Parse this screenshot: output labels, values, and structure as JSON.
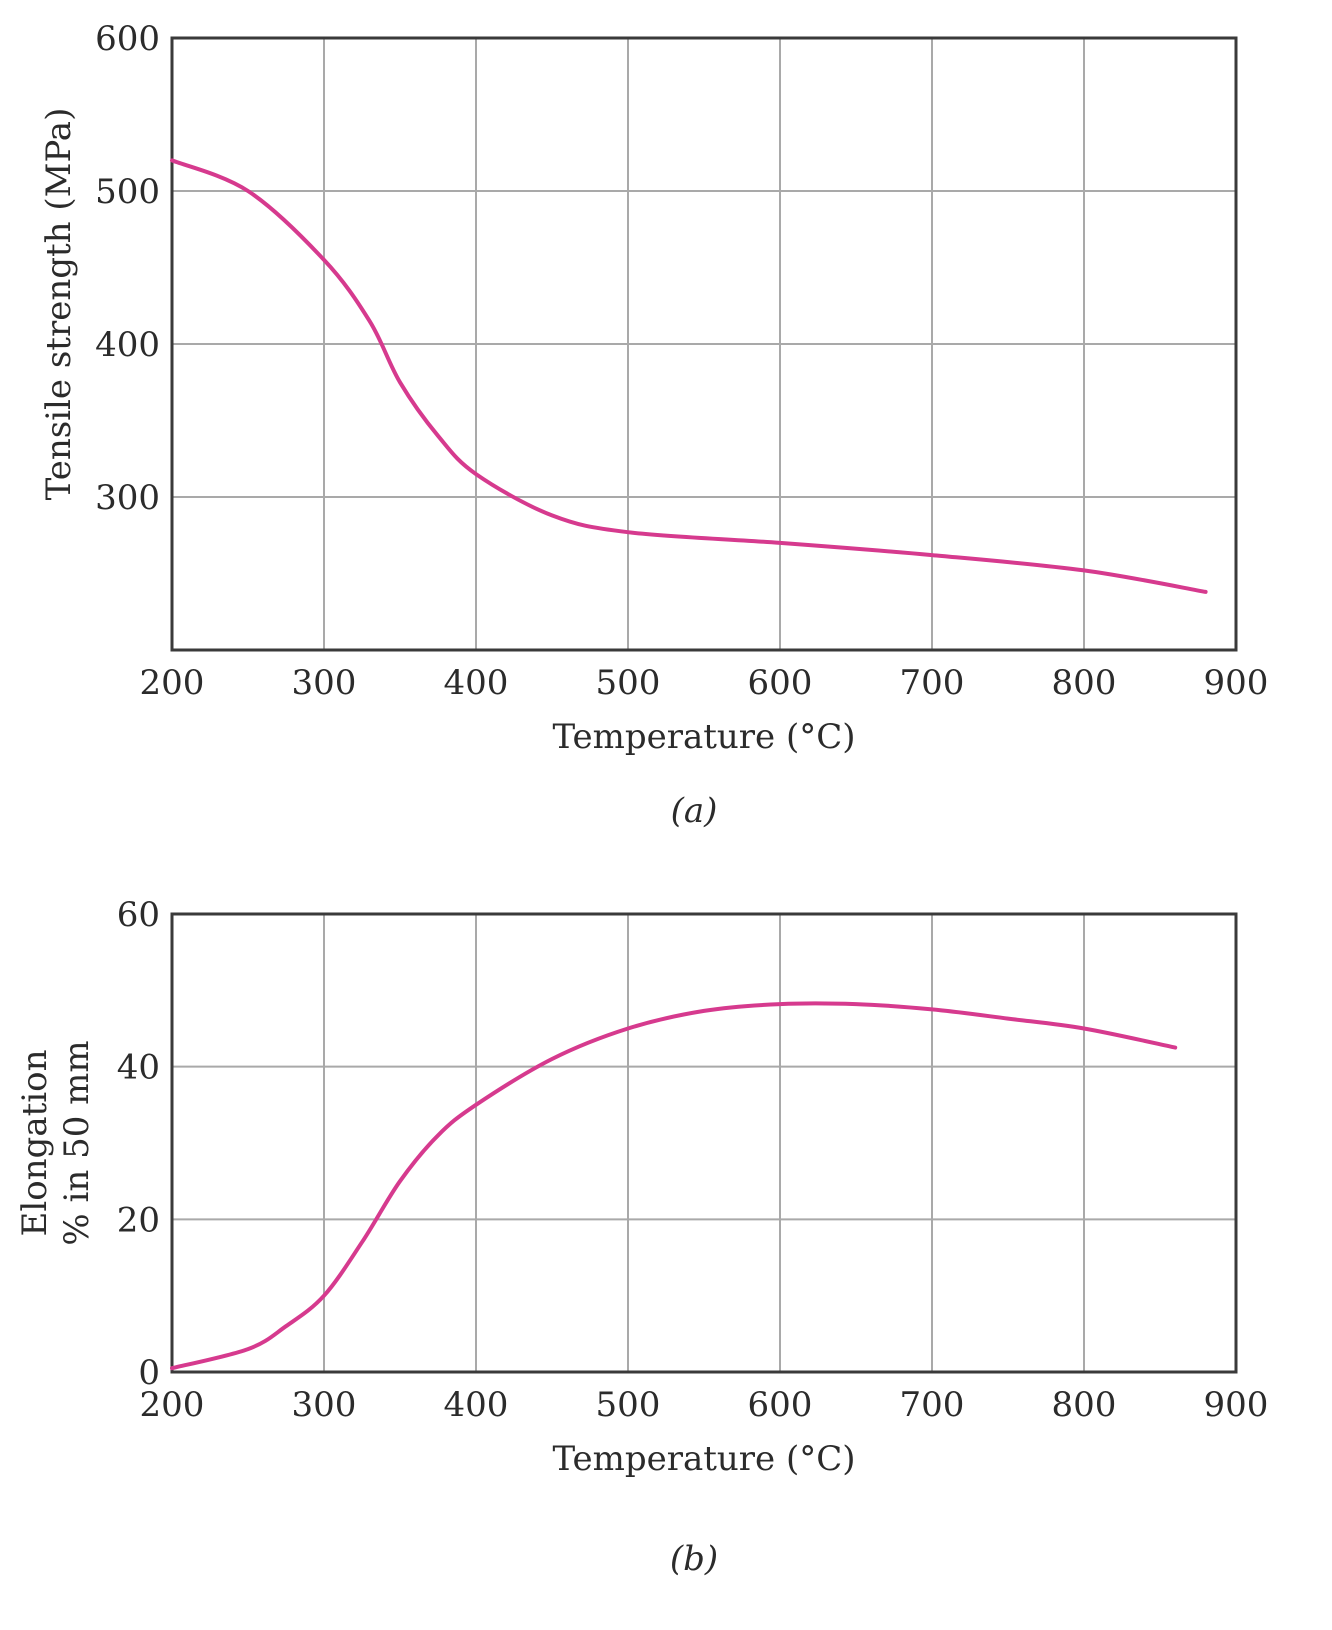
{
  "chart_data": [
    {
      "type": "line",
      "panel_label": "(a)",
      "xlabel": "Temperature (°C)",
      "ylabel": "Tensile strength (MPa)",
      "xlim": [
        200,
        900
      ],
      "ylim": [
        200,
        600
      ],
      "xticks": [
        200,
        300,
        400,
        500,
        600,
        700,
        800,
        900
      ],
      "yticks": [
        300,
        400,
        500,
        600
      ],
      "grid": true,
      "colors": {
        "line": "#d63a8e"
      },
      "series": [
        {
          "x": [
            200,
            250,
            300,
            330,
            350,
            375,
            400,
            450,
            500,
            600,
            700,
            800,
            880
          ],
          "y": [
            520,
            500,
            455,
            415,
            375,
            340,
            315,
            288,
            277,
            270,
            262,
            252,
            238
          ]
        }
      ]
    },
    {
      "type": "line",
      "panel_label": "(b)",
      "xlabel": "Temperature (°C)",
      "ylabel": [
        "Elongation",
        "% in 50 mm"
      ],
      "xlim": [
        200,
        900
      ],
      "ylim": [
        0,
        60
      ],
      "xticks": [
        200,
        300,
        400,
        500,
        600,
        700,
        800,
        900
      ],
      "yticks": [
        0,
        20,
        40,
        60
      ],
      "grid": true,
      "colors": {
        "line": "#d63a8e"
      },
      "series": [
        {
          "x": [
            200,
            250,
            275,
            300,
            325,
            350,
            375,
            400,
            450,
            500,
            550,
            600,
            650,
            700,
            750,
            800,
            860
          ],
          "y": [
            0.5,
            3,
            6,
            10,
            17,
            25,
            31,
            35,
            41,
            45,
            47.3,
            48.2,
            48.2,
            47.5,
            46.3,
            45,
            42.5
          ]
        }
      ]
    }
  ]
}
